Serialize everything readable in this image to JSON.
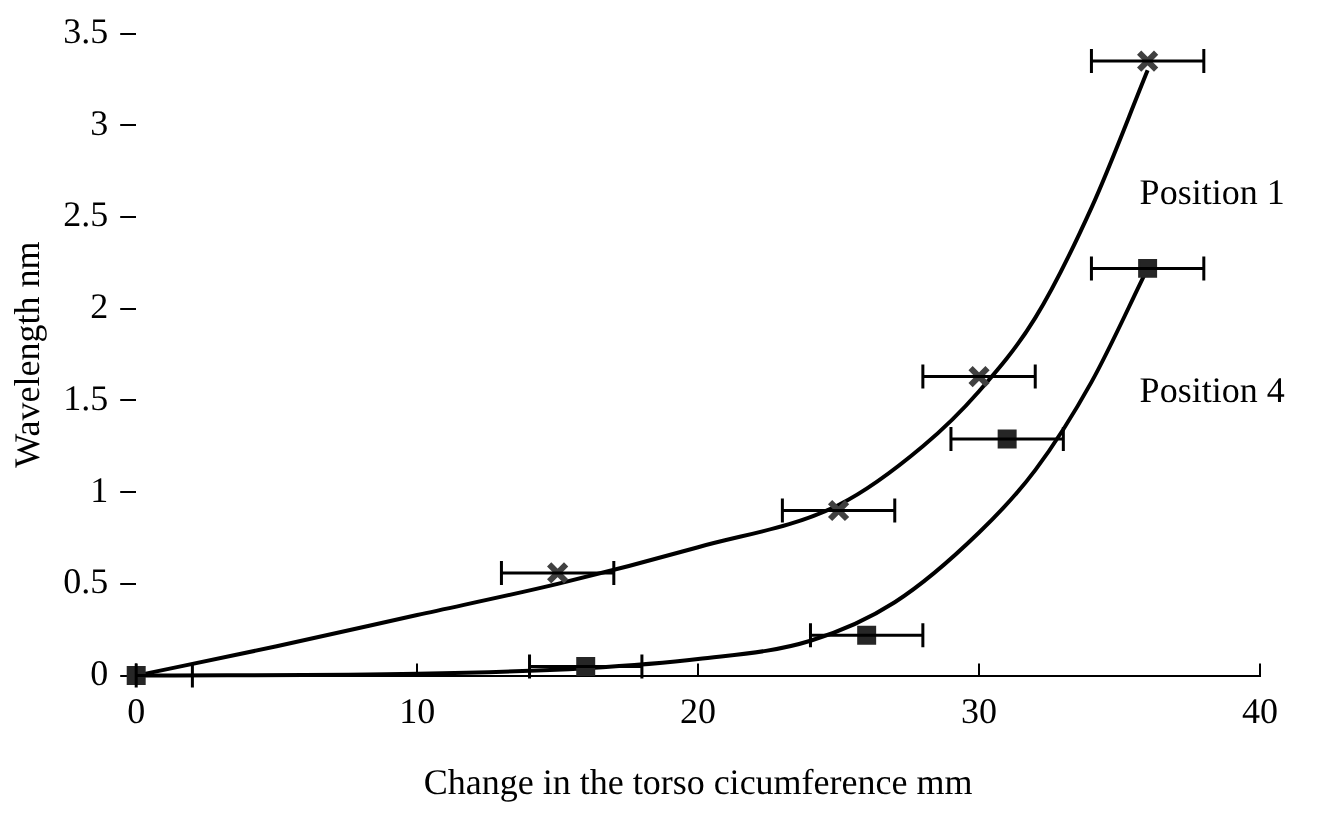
{
  "chart_data": {
    "type": "scatter",
    "xlabel": "Change in the torso cicumference mm",
    "ylabel": "Wavelength nm",
    "xlim": [
      0,
      40
    ],
    "xticks": [
      0,
      10,
      20,
      30,
      40
    ],
    "ylim": [
      0,
      3.5
    ],
    "yticks": [
      0,
      0.5,
      1,
      1.5,
      2,
      2.5,
      3,
      3.5
    ],
    "grid": false,
    "legend": false,
    "series": [
      {
        "marker": "cross",
        "color": "#404040",
        "x": [
          15,
          25,
          30,
          36
        ],
        "values": [
          0.56,
          0.9,
          1.63,
          3.35
        ],
        "xerrors": [
          2,
          2,
          2,
          2
        ]
      },
      {
        "marker": "square",
        "color": "#262626",
        "x": [
          0,
          16,
          26,
          31,
          36
        ],
        "values": [
          0,
          0.05,
          0.22,
          1.29,
          2.22
        ],
        "xerrors": [
          [
            0,
            2
          ],
          2,
          2,
          2,
          2
        ]
      },
      {
        "type": "line",
        "marker": "none",
        "color": "#000000",
        "x": [
          0,
          5,
          10,
          15,
          20,
          25,
          28,
          30,
          32,
          34,
          36
        ],
        "values": [
          0,
          0.16,
          0.33,
          0.5,
          0.7,
          0.93,
          1.25,
          1.55,
          1.95,
          2.55,
          3.3
        ]
      },
      {
        "type": "line",
        "marker": "none",
        "color": "#000000",
        "x": [
          0,
          10,
          16,
          20,
          24,
          27,
          30,
          32,
          34,
          36
        ],
        "values": [
          0,
          0.01,
          0.04,
          0.09,
          0.19,
          0.4,
          0.78,
          1.12,
          1.6,
          2.22
        ]
      }
    ],
    "annotations": [
      "Position 1",
      "Position 4"
    ]
  }
}
